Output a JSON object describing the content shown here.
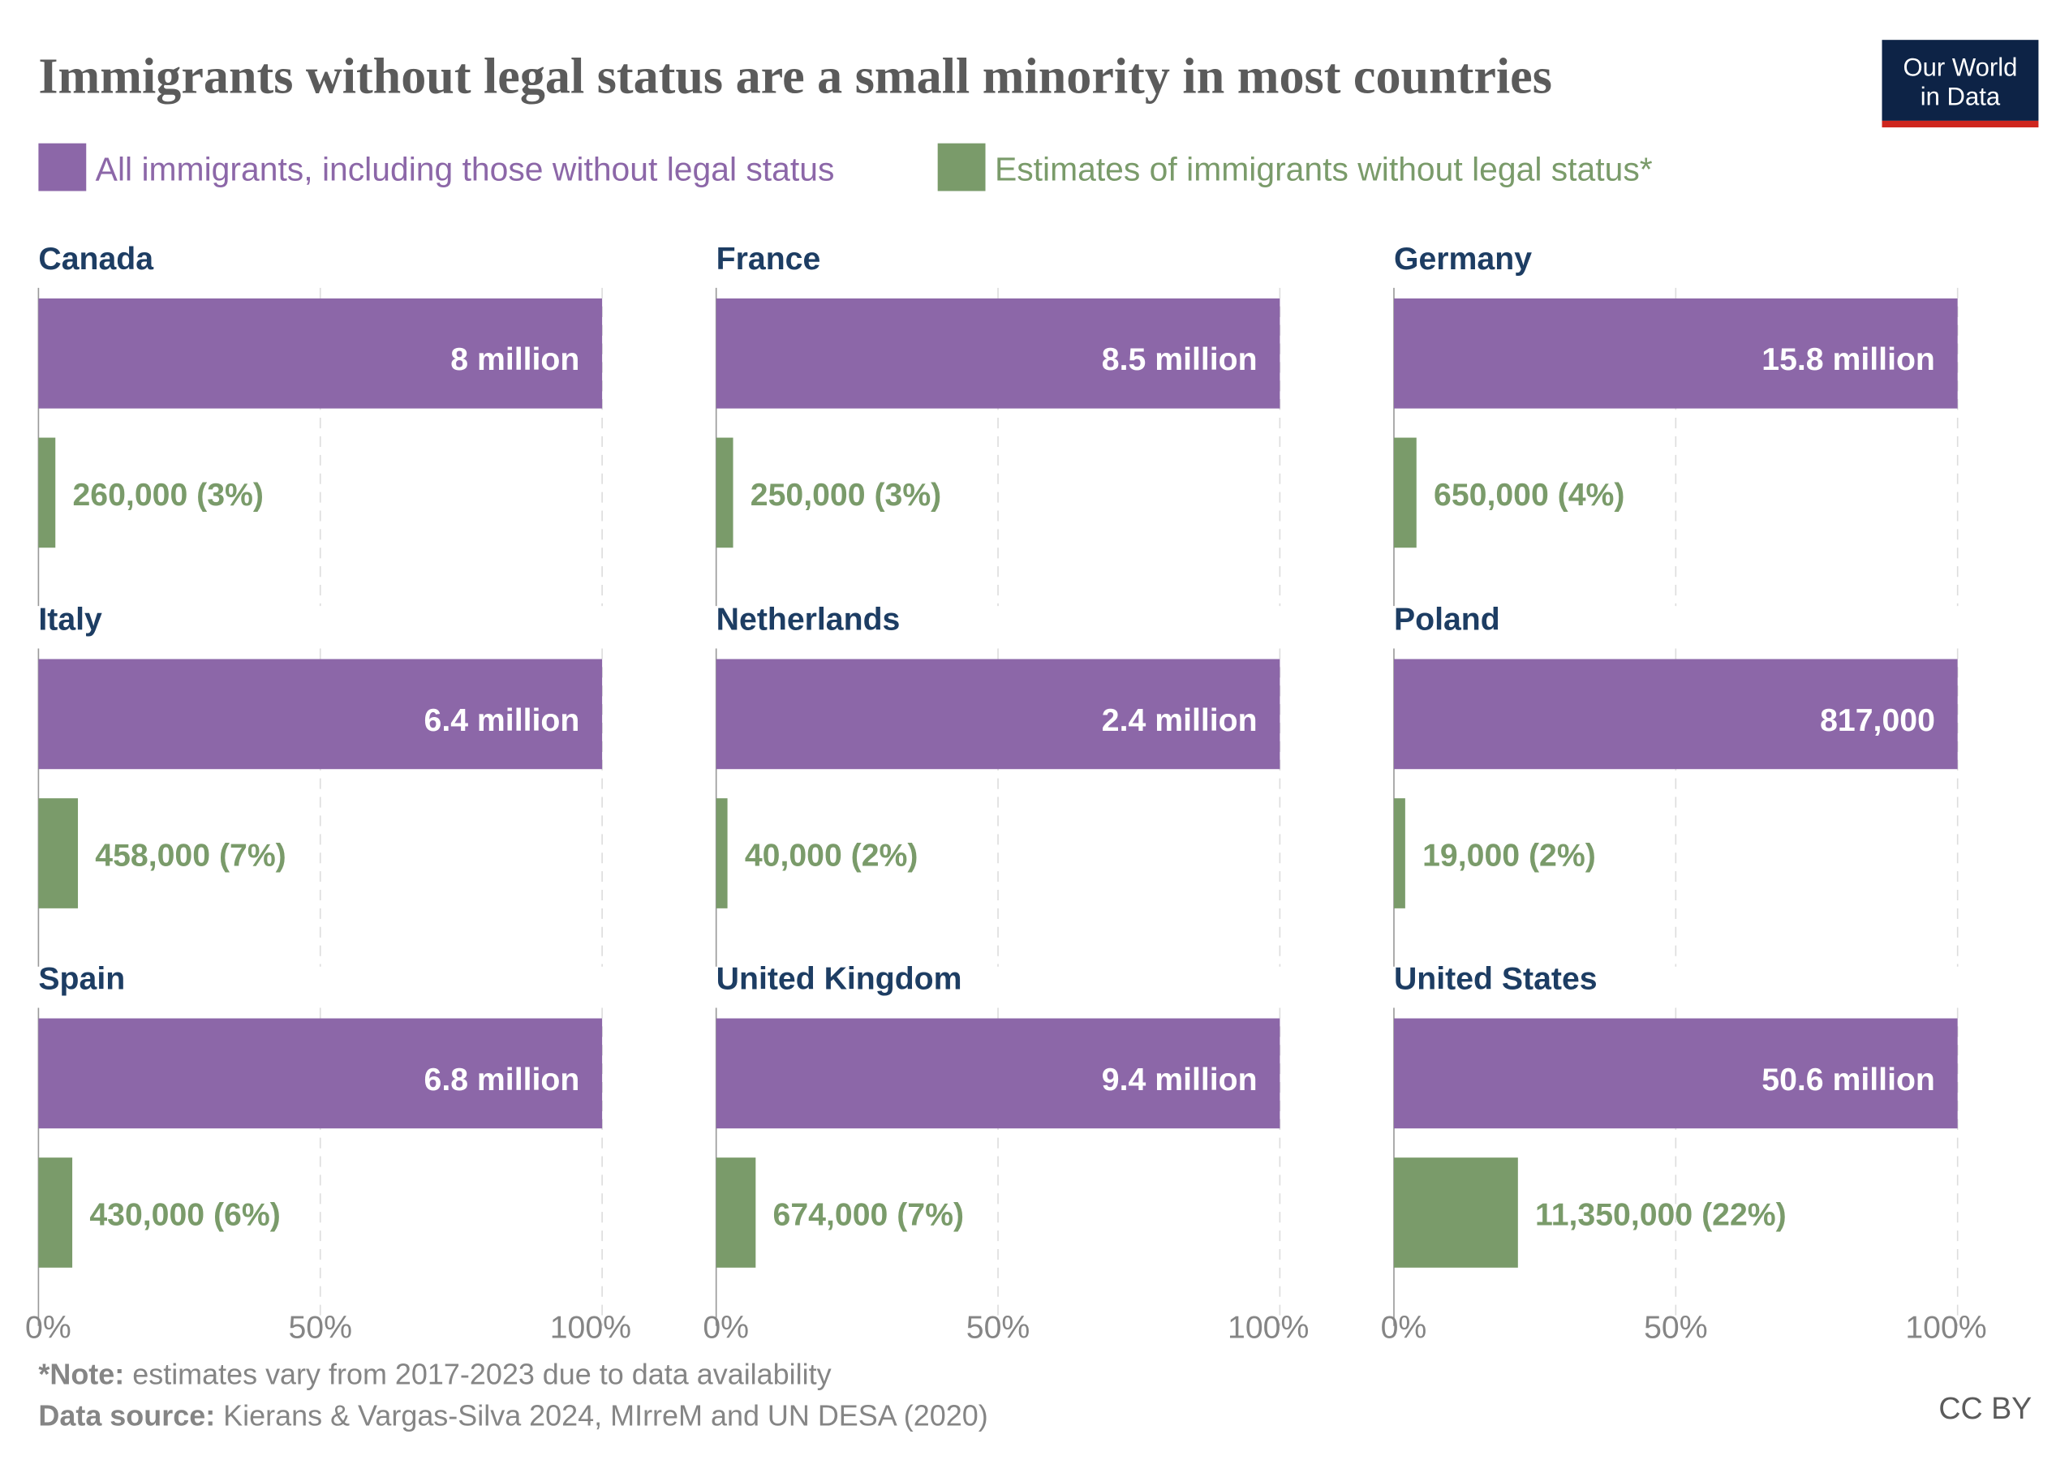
{
  "chart_data": {
    "type": "bar",
    "title": "Immigrants without legal status are a small minority in most countries",
    "legend": {
      "placement": "top-left",
      "items": [
        {
          "name": "All immigrants, including those without legal status",
          "color": "#8c67a8"
        },
        {
          "name": "Estimates of immigrants without legal status*",
          "color": "#7a9b6a"
        }
      ]
    },
    "x_ticks": [
      "0%",
      "50%",
      "100%"
    ],
    "xlim": [
      0,
      100
    ],
    "grid": true,
    "panels": [
      {
        "country": "Canada",
        "all_pct": 100,
        "all_label": "8 million",
        "undoc_pct": 3,
        "undoc_label": "260,000 (3%)"
      },
      {
        "country": "France",
        "all_pct": 100,
        "all_label": "8.5 million",
        "undoc_pct": 3,
        "undoc_label": "250,000 (3%)"
      },
      {
        "country": "Germany",
        "all_pct": 100,
        "all_label": "15.8 million",
        "undoc_pct": 4,
        "undoc_label": "650,000 (4%)"
      },
      {
        "country": "Italy",
        "all_pct": 100,
        "all_label": "6.4 million",
        "undoc_pct": 7,
        "undoc_label": "458,000 (7%)"
      },
      {
        "country": "Netherlands",
        "all_pct": 100,
        "all_label": "2.4 million",
        "undoc_pct": 2,
        "undoc_label": "40,000 (2%)"
      },
      {
        "country": "Poland",
        "all_pct": 100,
        "all_label": "817,000",
        "undoc_pct": 2,
        "undoc_label": "19,000 (2%)"
      },
      {
        "country": "Spain",
        "all_pct": 100,
        "all_label": "6.8 million",
        "undoc_pct": 6,
        "undoc_label": "430,000 (6%)"
      },
      {
        "country": "United Kingdom",
        "all_pct": 100,
        "all_label": "9.4 million",
        "undoc_pct": 7,
        "undoc_label": "674,000 (7%)"
      },
      {
        "country": "United States",
        "all_pct": 100,
        "all_label": "50.6 million",
        "undoc_pct": 22,
        "undoc_label": "11,350,000 (22%)"
      }
    ]
  },
  "logo": {
    "line1": "Our World",
    "line2": "in Data"
  },
  "footer": {
    "note_prefix": "*Note:",
    "note_text": " estimates vary from 2017-2023 due to data availability",
    "source_prefix": "Data source:",
    "source_text": " Kierans & Vargas-Silva 2024, MIrreM and UN DESA (2020)",
    "license": "CC BY"
  },
  "colors": {
    "all": "#8c67a8",
    "undoc": "#7a9b6a",
    "country": "#1d3d63",
    "logo_bg": "#0d2346",
    "logo_accent": "#ce261e"
  }
}
